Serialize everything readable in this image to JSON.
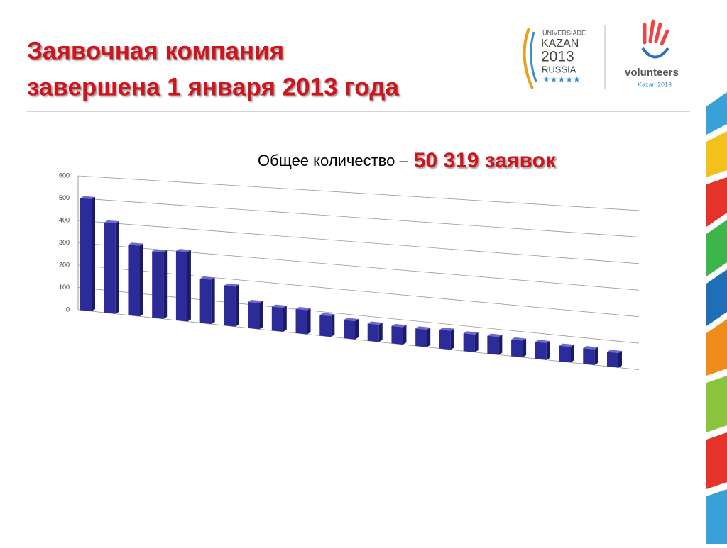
{
  "header": {
    "title_line1": "Заявочная компания",
    "title_line2": "завершена 1 января 2013 года"
  },
  "logos": {
    "universiade": "UNIVERSIADE",
    "city": "KAZAN",
    "year": "2013",
    "country": "RUSSIA",
    "volunteers": "volunteers",
    "volunteers_sub": "Kazan 2013"
  },
  "chart_data": {
    "type": "bar",
    "subtitle": "Общее количество –",
    "total": "50 319 заявок",
    "values": [
      500,
      400,
      310,
      290,
      300,
      190,
      170,
      110,
      100,
      100,
      85,
      75,
      70,
      70,
      70,
      75,
      70,
      70,
      65,
      65,
      60,
      60,
      55
    ],
    "color": "#2b2b9a",
    "ylim": [
      0,
      600
    ],
    "yticks": [
      0,
      100,
      200,
      300,
      400,
      500,
      600
    ],
    "grid": true
  }
}
